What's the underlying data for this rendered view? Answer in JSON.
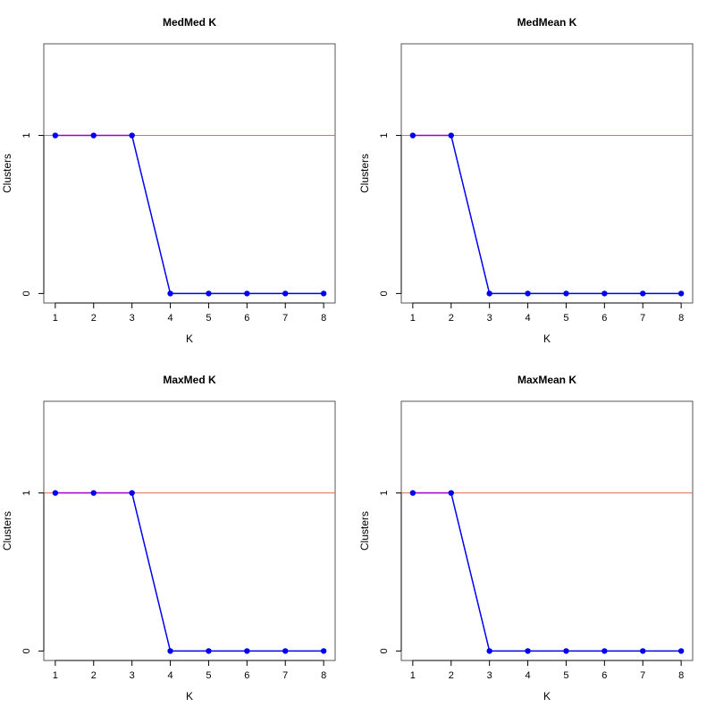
{
  "chart_data": [
    {
      "type": "line",
      "title": "MedMed K",
      "xlabel": "K",
      "ylabel": "Clusters",
      "x": [
        1,
        2,
        3,
        4,
        5,
        6,
        7,
        8
      ],
      "series": [
        {
          "values": [
            1,
            1,
            1,
            0,
            0,
            0,
            0,
            0
          ]
        }
      ],
      "xticks": [
        1,
        2,
        3,
        4,
        5,
        6,
        7,
        8
      ],
      "yticks": [
        0,
        1
      ],
      "xlim": [
        0.7,
        8.3
      ],
      "ylim": [
        -0.06,
        1.58
      ],
      "reference_line_y": 1,
      "grid": false
    },
    {
      "type": "line",
      "title": "MedMean K",
      "xlabel": "K",
      "ylabel": "Clusters",
      "x": [
        1,
        2,
        3,
        4,
        5,
        6,
        7,
        8
      ],
      "series": [
        {
          "values": [
            1,
            1,
            0,
            0,
            0,
            0,
            0,
            0
          ]
        }
      ],
      "xticks": [
        1,
        2,
        3,
        4,
        5,
        6,
        7,
        8
      ],
      "yticks": [
        0,
        1
      ],
      "xlim": [
        0.7,
        8.3
      ],
      "ylim": [
        -0.06,
        1.58
      ],
      "reference_line_y": 1,
      "grid": false
    },
    {
      "type": "line",
      "title": "MaxMed K",
      "xlabel": "K",
      "ylabel": "Clusters",
      "x": [
        1,
        2,
        3,
        4,
        5,
        6,
        7,
        8
      ],
      "series": [
        {
          "values": [
            1,
            1,
            1,
            0,
            0,
            0,
            0,
            0
          ]
        }
      ],
      "xticks": [
        1,
        2,
        3,
        4,
        5,
        6,
        7,
        8
      ],
      "yticks": [
        0,
        1
      ],
      "xlim": [
        0.7,
        8.3
      ],
      "ylim": [
        -0.06,
        1.58
      ],
      "reference_line_y": 1,
      "grid": false
    },
    {
      "type": "line",
      "title": "MaxMean K",
      "xlabel": "K",
      "ylabel": "Clusters",
      "x": [
        1,
        2,
        3,
        4,
        5,
        6,
        7,
        8
      ],
      "series": [
        {
          "values": [
            1,
            1,
            0,
            0,
            0,
            0,
            0,
            0
          ]
        }
      ],
      "xticks": [
        1,
        2,
        3,
        4,
        5,
        6,
        7,
        8
      ],
      "yticks": [
        0,
        1
      ],
      "xlim": [
        0.7,
        8.3
      ],
      "ylim": [
        -0.06,
        1.58
      ],
      "reference_line_y": 1,
      "grid": false
    }
  ],
  "colors": {
    "series_line": "#0000ee",
    "series_point": "#0000ee",
    "overlap_line": "#9900cc",
    "reference_line": "#e07060",
    "axis": "#000000",
    "box": "#555555"
  }
}
